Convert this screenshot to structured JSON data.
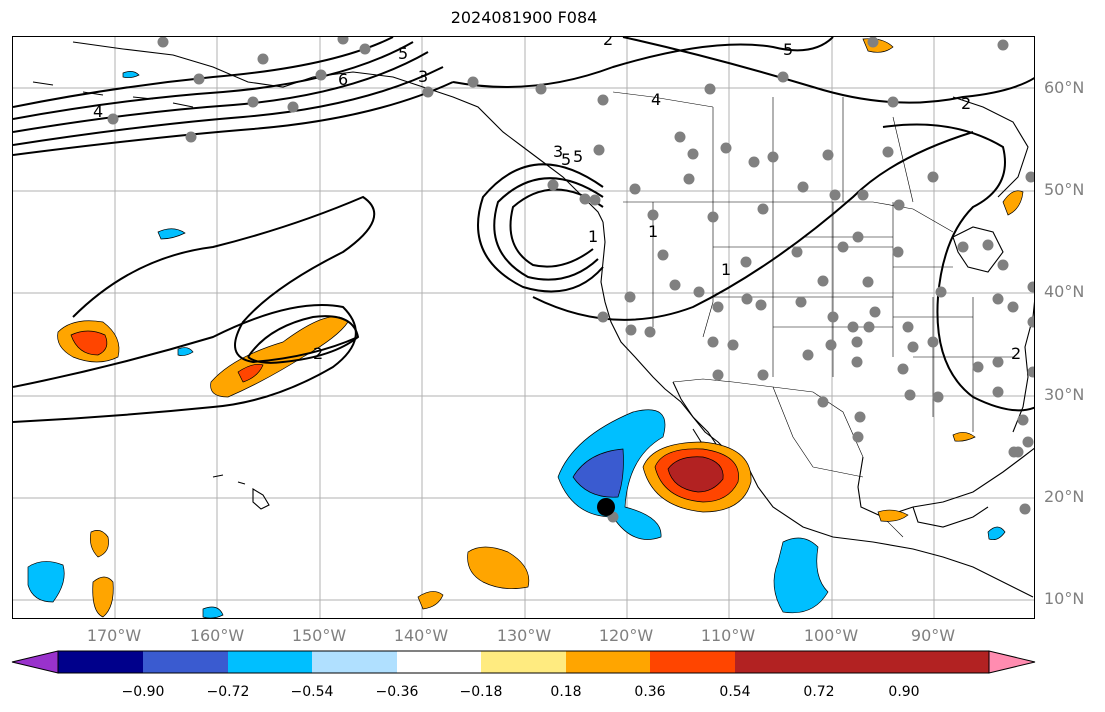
{
  "title": "2024081900 F084",
  "lat_labels": [
    "60°N",
    "50°N",
    "40°N",
    "30°N",
    "20°N",
    "10°N"
  ],
  "lon_labels": [
    "170°W",
    "160°W",
    "150°W",
    "140°W",
    "130°W",
    "120°W",
    "110°W",
    "100°W",
    "90°W"
  ],
  "contour_labels": [
    "4",
    "3",
    "5",
    "5",
    "6",
    "2",
    "4",
    "5",
    "2",
    "1",
    "3",
    "5",
    "1",
    "1",
    "2",
    "2"
  ],
  "colorbar": {
    "tick_labels": [
      "−0.90",
      "−0.72",
      "−0.54",
      "−0.36",
      "−0.18",
      "0.18",
      "0.36",
      "0.54",
      "0.72",
      "0.90"
    ],
    "colors": [
      "#9932cc",
      "#00008b",
      "#3a5bd0",
      "#00bfff",
      "#b0e0ff",
      "#ffffff",
      "#ffeb80",
      "#ffa500",
      "#ff4500",
      "#b22222",
      "#ff8cb0"
    ]
  },
  "colors": {
    "gridline": "#b0b0b0",
    "coastline": "#000000",
    "station_dot": "#808080",
    "marker": "#000000"
  }
}
